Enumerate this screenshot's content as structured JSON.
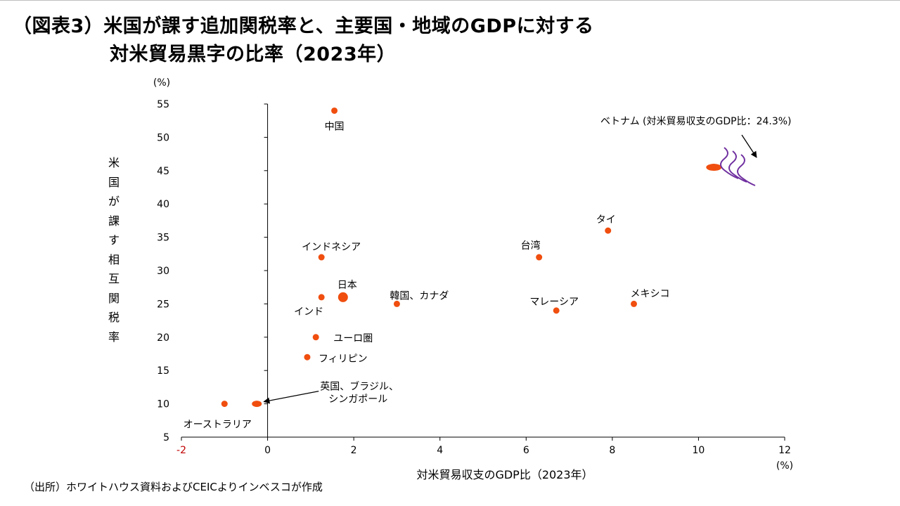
{
  "title": {
    "line1": "（図表3）米国が課す追加関税率と、主要国・地域のGDPに対する",
    "line2": "対米貿易黒字の比率（2023年）"
  },
  "source": "（出所）ホワイトハウス資料およびCEICよりインベスコが作成",
  "colors": {
    "marker": "#f04e0f",
    "axis": "#000000",
    "negative_tick": "#c00000",
    "wave": "#7030a0"
  },
  "chart_data": {
    "type": "scatter",
    "title": "米国が課す追加関税率と、主要国・地域のGDPに対する対米貿易黒字の比率（2023年）",
    "xlabel": "対米貿易収支のGDP比（2023年）",
    "x_unit": "(%)",
    "ylabel": "米国が課す相互関税率",
    "y_unit": "(%)",
    "xlim": [
      -2,
      12
    ],
    "ylim": [
      5,
      55
    ],
    "x_ticks": [
      "-2",
      "0",
      "2",
      "4",
      "6",
      "8",
      "10",
      "12"
    ],
    "y_ticks": [
      "5",
      "10",
      "15",
      "20",
      "25",
      "30",
      "35",
      "40",
      "45",
      "50",
      "55"
    ],
    "grid": false,
    "points": [
      {
        "label": "中国",
        "x": 1.55,
        "y": 54
      },
      {
        "label": "ベトナム (対米貿易収支のGDP比：24.3%)",
        "x": 11.45,
        "y": 45.5,
        "shape": "ellipse",
        "axis_break": true
      },
      {
        "label": "タイ",
        "x": 7.9,
        "y": 36
      },
      {
        "label": "インドネシア",
        "x": 1.25,
        "y": 32
      },
      {
        "label": "台湾",
        "x": 6.3,
        "y": 32
      },
      {
        "label": "日本",
        "x": 1.75,
        "y": 26,
        "highlight": true
      },
      {
        "label": "韓国、カナダ",
        "x": 3.0,
        "y": 25
      },
      {
        "label": "インド",
        "x": 1.25,
        "y": 26
      },
      {
        "label": "マレーシア",
        "x": 6.7,
        "y": 24
      },
      {
        "label": "メキシコ",
        "x": 8.5,
        "y": 25
      },
      {
        "label": "ユーロ圏",
        "x": 1.12,
        "y": 20
      },
      {
        "label": "フィリピン",
        "x": 0.92,
        "y": 17
      },
      {
        "label": "オーストラリア",
        "x": -1.0,
        "y": 10
      },
      {
        "label": "英国、ブラジル、シンガポール",
        "x": -0.25,
        "y": 10,
        "shape": "ellipse-small"
      }
    ]
  }
}
